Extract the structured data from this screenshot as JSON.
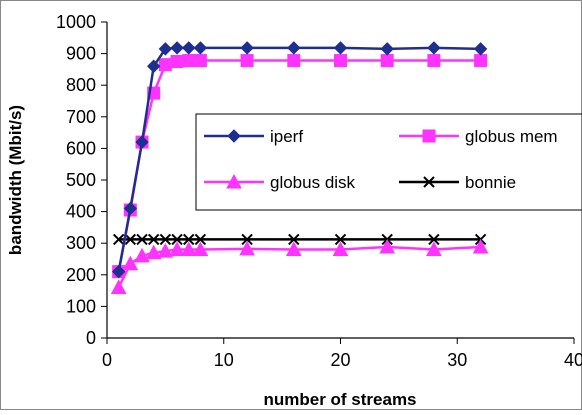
{
  "chart_data": {
    "type": "line",
    "xlabel": "number of streams",
    "ylabel": "bandwidth (Mbit/s)",
    "xlim": [
      0,
      40
    ],
    "ylim": [
      0,
      1000
    ],
    "x_ticks": [
      0,
      10,
      20,
      30,
      40
    ],
    "y_ticks": [
      0,
      100,
      200,
      300,
      400,
      500,
      600,
      700,
      800,
      900,
      1000
    ],
    "grid": false,
    "legend_position": "center-right",
    "series": [
      {
        "name": "iperf",
        "color": "#1f2f8f",
        "marker": "diamond",
        "x": [
          1,
          2,
          3,
          4,
          5,
          6,
          7,
          8,
          12,
          16,
          20,
          24,
          28,
          32
        ],
        "y": [
          210,
          410,
          620,
          860,
          915,
          918,
          918,
          918,
          918,
          918,
          918,
          915,
          918,
          915
        ]
      },
      {
        "name": "globus mem",
        "color": "#ff33ff",
        "marker": "square",
        "x": [
          1,
          2,
          3,
          4,
          5,
          6,
          7,
          8,
          12,
          16,
          20,
          24,
          28,
          32
        ],
        "y": [
          210,
          405,
          620,
          775,
          865,
          875,
          878,
          878,
          878,
          878,
          878,
          878,
          878,
          878
        ]
      },
      {
        "name": "globus disk",
        "color": "#ff33ff",
        "marker": "triangle",
        "x": [
          1,
          2,
          3,
          4,
          5,
          6,
          7,
          8,
          12,
          16,
          20,
          24,
          28,
          32
        ],
        "y": [
          160,
          235,
          260,
          270,
          275,
          280,
          280,
          280,
          282,
          280,
          280,
          288,
          280,
          288
        ]
      },
      {
        "name": "bonnie",
        "color": "#000000",
        "marker": "x",
        "x": [
          1,
          2,
          3,
          4,
          5,
          6,
          7,
          8,
          12,
          16,
          20,
          24,
          28,
          32
        ],
        "y": [
          312,
          312,
          312,
          312,
          312,
          312,
          312,
          312,
          312,
          312,
          312,
          312,
          312,
          312
        ]
      }
    ]
  }
}
